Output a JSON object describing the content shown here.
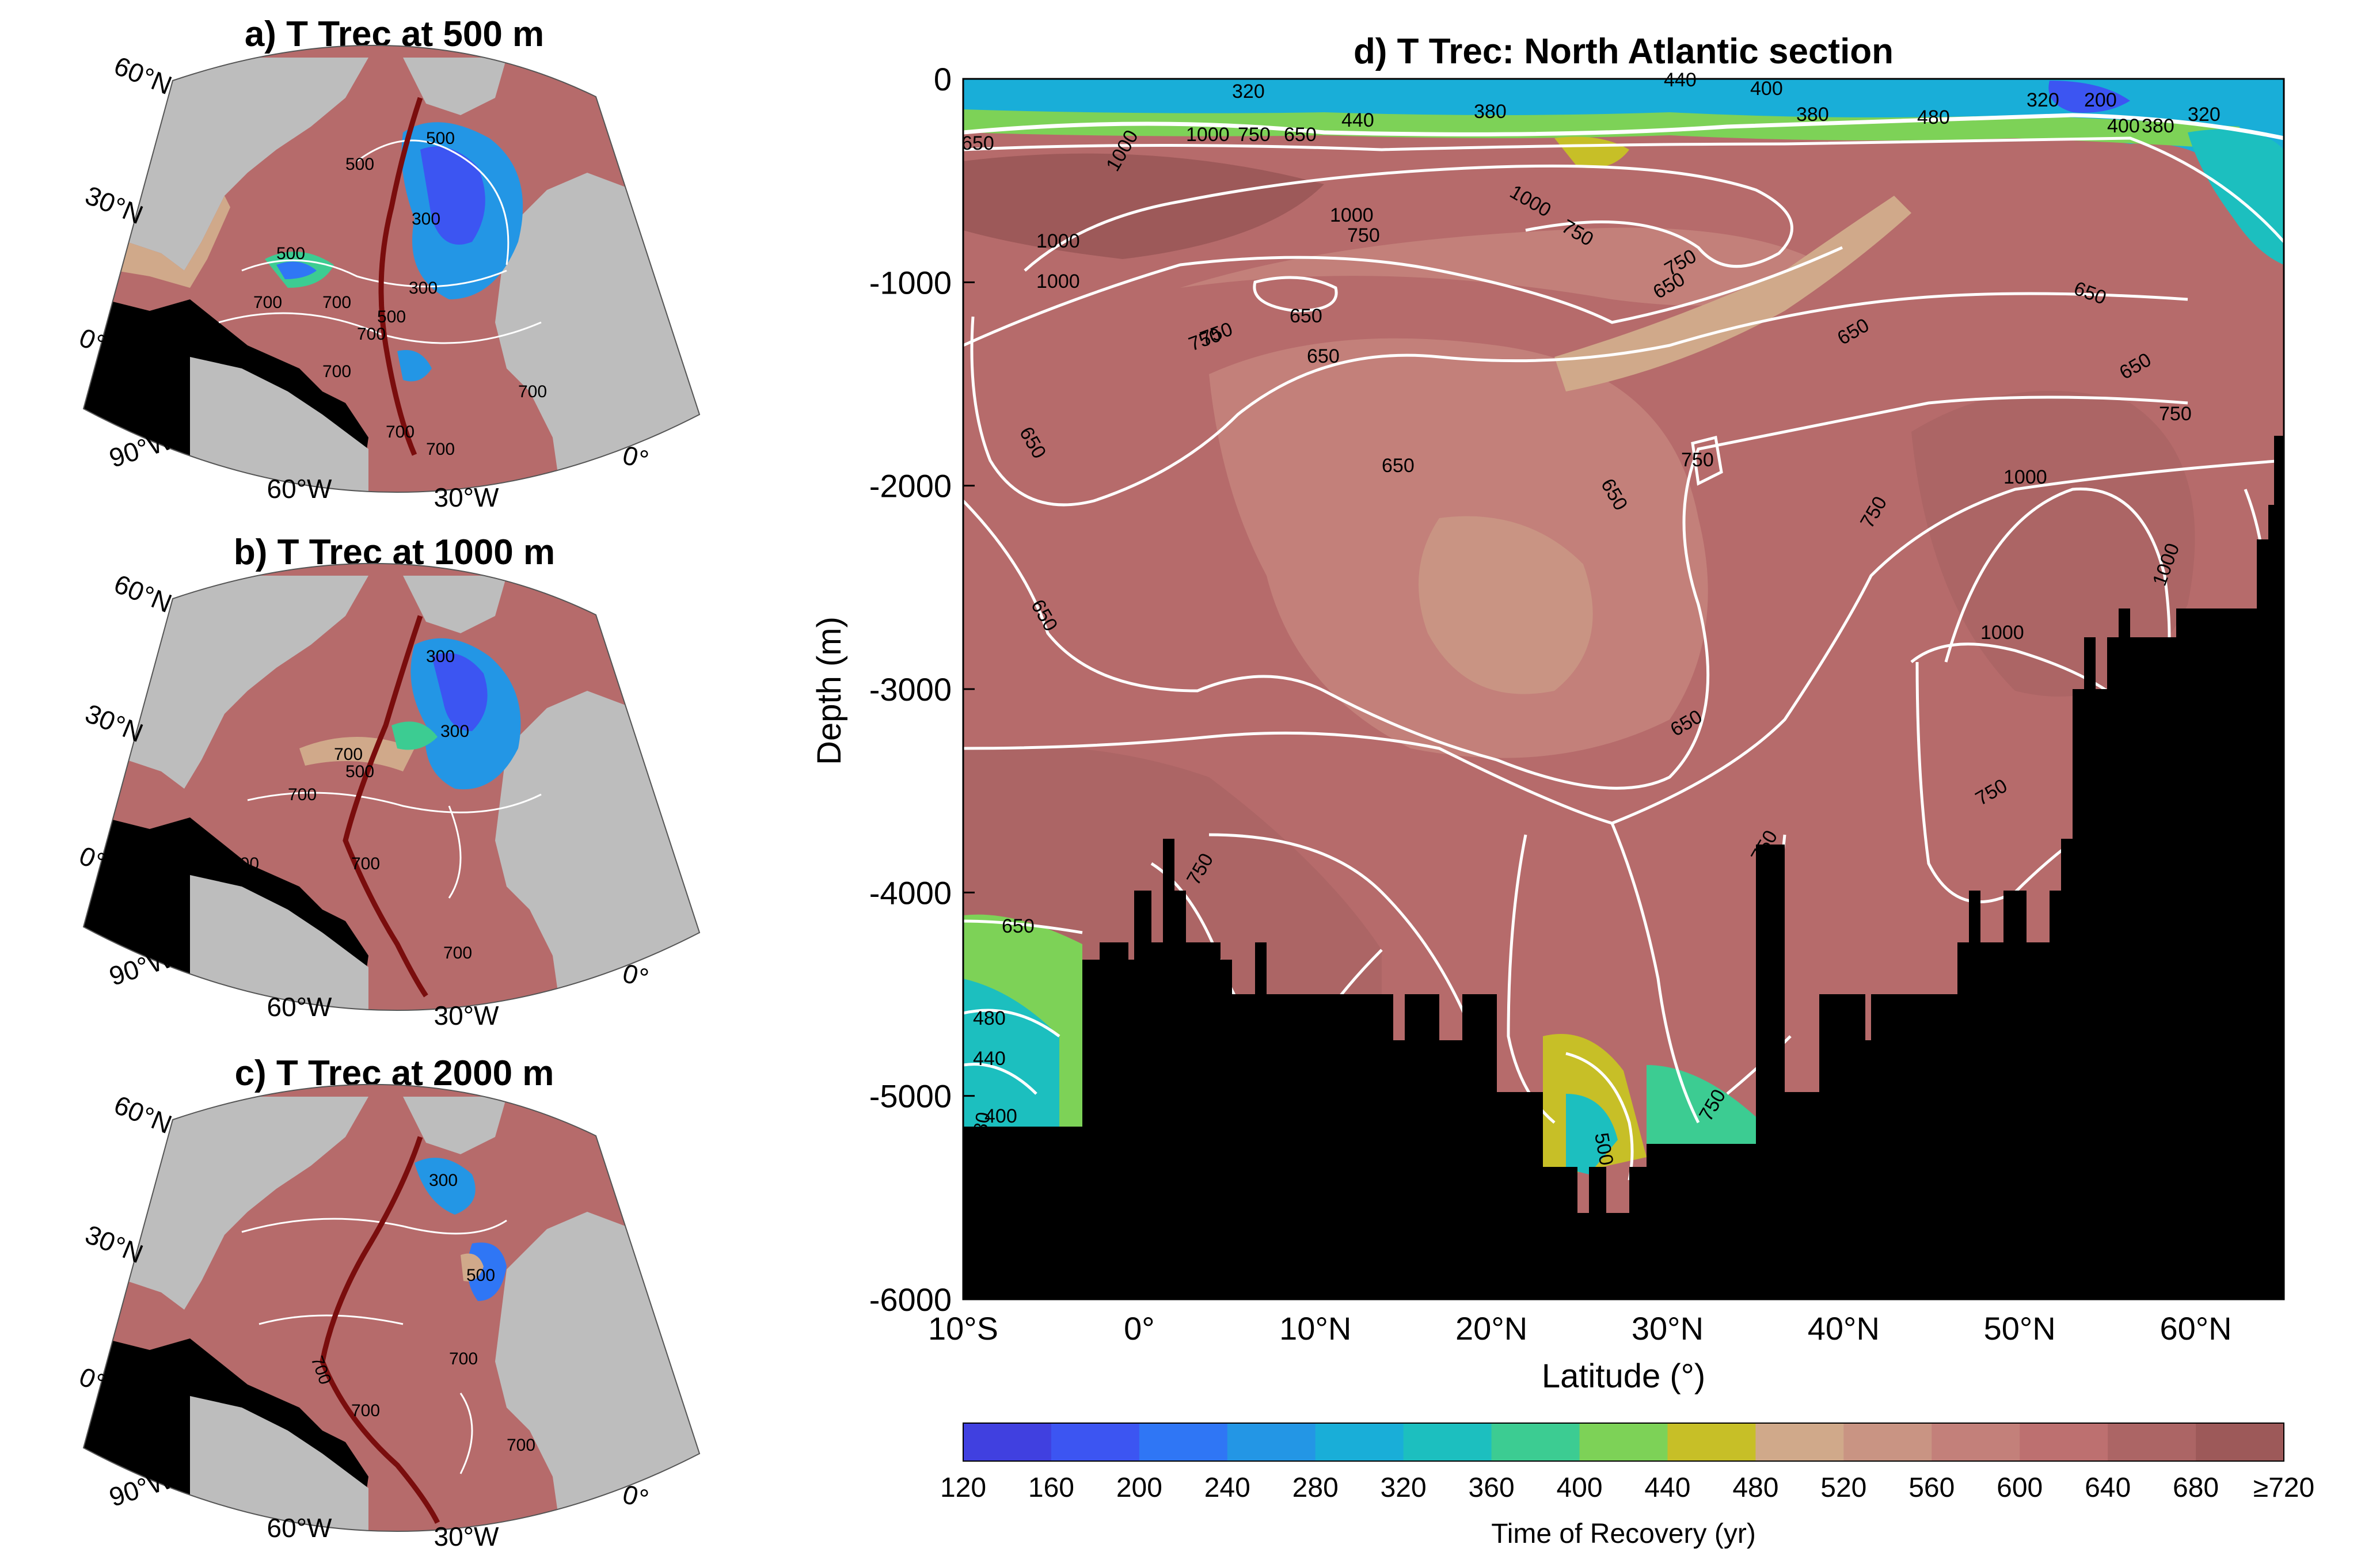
{
  "panels": {
    "a": {
      "title": "a) T Trec at 500 m"
    },
    "b": {
      "title": "b) T Trec at 1000 m"
    },
    "c": {
      "title": "c) T Trec at 2000 m"
    },
    "d": {
      "title": "d) T Trec: North Atlantic section"
    }
  },
  "map_labels": {
    "lat": [
      "60°N",
      "30°N",
      "0°"
    ],
    "lon": [
      "90°W",
      "60°W",
      "30°W",
      "0°"
    ]
  },
  "map_contours": {
    "a": [
      "500",
      "500",
      "300",
      "500",
      "300",
      "500",
      "700",
      "700",
      "700",
      "700",
      "500",
      "700",
      "700",
      "700",
      "700"
    ],
    "b": [
      "300",
      "700",
      "500",
      "300",
      "700",
      "700",
      "700",
      "700",
      "700"
    ],
    "c": [
      "700",
      "300",
      "500",
      "700",
      "700",
      "700",
      "700"
    ]
  },
  "colors": {
    "ocean_base": "#b66b6b",
    "land": "#bdbdbd",
    "seafloor": "#000000",
    "section_line": "#7a0d0d",
    "contour": "#ffffff"
  },
  "colorbar": {
    "ticks": [
      "120",
      "160",
      "200",
      "240",
      "280",
      "320",
      "360",
      "400",
      "440",
      "480",
      "520",
      "560",
      "600",
      "640",
      "680",
      "≥720"
    ],
    "colors": [
      "#4040e0",
      "#3c55f2",
      "#2f76f5",
      "#2396e5",
      "#19aed8",
      "#1cbfbf",
      "#3ccc92",
      "#7dd257",
      "#c7bf27",
      "#d0a98a",
      "#c99483",
      "#c3807a",
      "#bd7070",
      "#ac6565",
      "#9d5959"
    ],
    "label": "Time of Recovery (yr)"
  },
  "section_contour_labels": [
    "320",
    "440",
    "380",
    "440",
    "400",
    "380",
    "320",
    "200",
    "480",
    "320",
    "400",
    "380",
    "650",
    "1000",
    "750",
    "650",
    "1000",
    "750",
    "1000",
    "750",
    "1000",
    "650",
    "650",
    "750",
    "650",
    "650",
    "750",
    "650",
    "750",
    "650",
    "1000",
    "650",
    "1000",
    "1000",
    "650",
    "650",
    "750",
    "750",
    "650",
    "750",
    "750",
    "1000",
    "1000",
    "650",
    "480",
    "440",
    "400",
    "380",
    "750",
    "650",
    "750",
    "500",
    "750"
  ],
  "chart_data": {
    "type": "heatmap",
    "title": "d) T Trec: North Atlantic section",
    "xlabel": "Latitude (°)",
    "ylabel": "Depth (m)",
    "xlim": [
      -10,
      65
    ],
    "ylim": [
      -6000,
      0
    ],
    "x_ticks": [
      "10°S",
      "0°",
      "10°N",
      "20°N",
      "30°N",
      "40°N",
      "50°N",
      "60°N"
    ],
    "y_ticks": [
      "0",
      "-1000",
      "-2000",
      "-3000",
      "-4000",
      "-5000",
      "-6000"
    ],
    "contour_levels": [
      200,
      320,
      380,
      400,
      440,
      480,
      500,
      650,
      750,
      1000
    ],
    "colorbar_range": [
      120,
      720
    ],
    "approx_fields": {
      "deep_interior_yr": "600-720",
      "surface_layer_yr": "120-480",
      "abyssal_south_basin_yr": "380-480"
    }
  }
}
